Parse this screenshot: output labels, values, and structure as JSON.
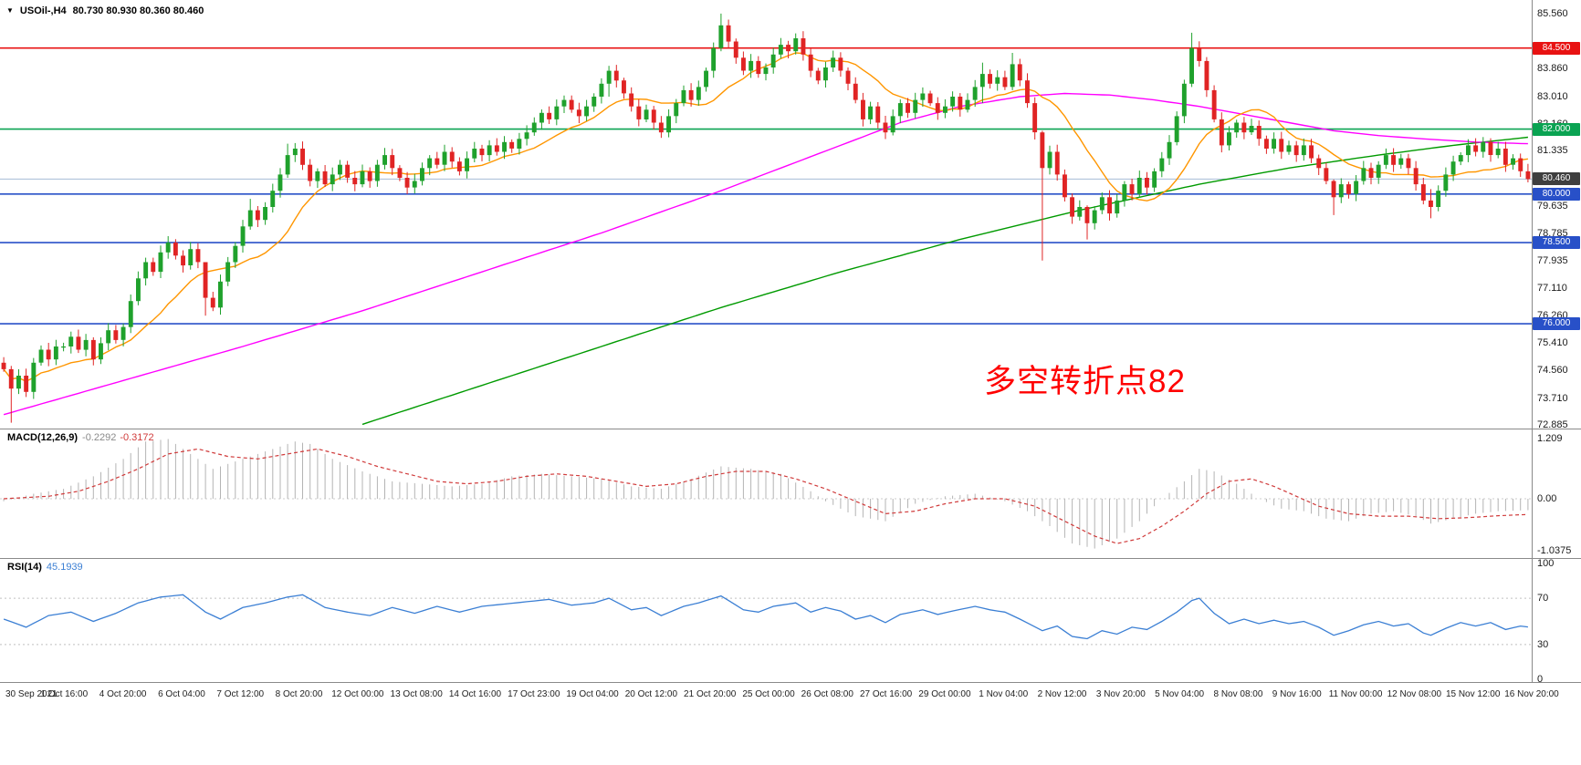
{
  "header": {
    "symbol": "USOil-,H4",
    "ohlc": "80.730 80.930 80.360 80.460"
  },
  "annotation": {
    "text": "多空转折点82",
    "color": "#ff0000"
  },
  "panels": {
    "macd": {
      "label": "MACD(12,26,9)",
      "value_main": "-0.2292",
      "value_signal": "-0.3172"
    },
    "rsi": {
      "label": "RSI(14)",
      "value": "45.1939"
    }
  },
  "chart_data": {
    "type": "candlestick",
    "symbol": "USOil",
    "timeframe": "H4",
    "ohlc_current": {
      "open": 80.73,
      "high": 80.93,
      "low": 80.36,
      "close": 80.46
    },
    "y_axis": {
      "range": [
        72.77,
        85.98
      ],
      "ticks": [
        "85.560",
        "83.860",
        "83.010",
        "82.160",
        "81.335",
        "79.635",
        "78.785",
        "77.935",
        "77.110",
        "76.260",
        "75.410",
        "74.560",
        "73.710",
        "72.885"
      ]
    },
    "up_color": "#1fa12c",
    "down_color": "#e02424",
    "closes": [
      74.6,
      74.0,
      74.4,
      73.9,
      74.8,
      75.2,
      74.9,
      75.3,
      75.3,
      75.6,
      75.2,
      75.5,
      74.9,
      75.4,
      75.8,
      75.5,
      75.9,
      76.7,
      77.4,
      77.9,
      77.6,
      78.2,
      78.5,
      78.1,
      77.8,
      78.3,
      77.9,
      76.8,
      76.5,
      77.3,
      77.9,
      78.4,
      79.0,
      79.5,
      79.2,
      79.6,
      80.1,
      80.6,
      81.2,
      81.4,
      80.9,
      80.4,
      80.7,
      80.3,
      80.6,
      80.9,
      80.5,
      80.3,
      80.7,
      80.4,
      80.9,
      81.2,
      80.8,
      80.5,
      80.2,
      80.4,
      80.8,
      81.1,
      80.9,
      81.3,
      81.0,
      80.7,
      81.1,
      81.4,
      81.2,
      81.5,
      81.3,
      81.6,
      81.4,
      81.7,
      81.9,
      82.2,
      82.5,
      82.3,
      82.7,
      82.9,
      82.6,
      82.4,
      82.7,
      83.0,
      83.4,
      83.8,
      83.5,
      83.1,
      82.7,
      82.3,
      82.6,
      82.2,
      81.9,
      82.4,
      82.8,
      83.2,
      82.9,
      83.3,
      83.8,
      84.5,
      85.2,
      84.7,
      84.2,
      83.8,
      84.1,
      83.7,
      83.9,
      84.3,
      84.6,
      84.4,
      84.8,
      84.3,
      83.8,
      83.5,
      83.9,
      84.2,
      83.8,
      83.4,
      82.9,
      82.3,
      82.7,
      82.2,
      81.9,
      82.4,
      82.8,
      82.5,
      82.9,
      83.1,
      82.8,
      82.5,
      82.7,
      83.0,
      82.6,
      82.9,
      83.3,
      83.7,
      83.4,
      83.6,
      83.3,
      84.0,
      83.5,
      82.8,
      81.9,
      80.8,
      81.3,
      80.6,
      79.9,
      79.3,
      79.6,
      79.1,
      79.5,
      79.9,
      79.4,
      79.8,
      80.3,
      80.0,
      80.5,
      80.2,
      80.7,
      81.1,
      81.6,
      82.4,
      83.4,
      84.5,
      84.1,
      83.2,
      82.3,
      81.5,
      81.9,
      82.2,
      81.9,
      82.1,
      81.7,
      81.4,
      81.7,
      81.3,
      81.5,
      81.2,
      81.5,
      81.1,
      80.8,
      80.4,
      79.9,
      80.3,
      80.0,
      80.4,
      80.8,
      80.5,
      80.9,
      81.2,
      80.9,
      81.1,
      80.8,
      80.3,
      79.8,
      79.6,
      80.1,
      80.6,
      81.0,
      81.2,
      81.5,
      81.3,
      81.6,
      81.2,
      81.4,
      80.9,
      81.1,
      80.7,
      80.46
    ],
    "wick_overrides": {
      "1": [
        74.7,
        72.95
      ],
      "27": [
        77.9,
        76.25
      ],
      "33": [
        79.85,
        78.9
      ],
      "38": [
        81.55,
        80.5
      ],
      "81": [
        83.95,
        83.0
      ],
      "96": [
        85.56,
        84.4
      ],
      "106": [
        84.95,
        84.3
      ],
      "131": [
        84.05,
        82.8
      ],
      "135": [
        84.35,
        83.2
      ],
      "139": [
        81.95,
        77.95
      ],
      "145": [
        79.65,
        78.6
      ],
      "159": [
        84.97,
        83.3
      ],
      "178": [
        80.45,
        79.35
      ],
      "191": [
        80.15,
        79.25
      ],
      "204": [
        80.93,
        80.36
      ]
    },
    "ma_fast": {
      "period": 12,
      "color": "#ff9600"
    },
    "ma_mid": {
      "color": "#ff00ff",
      "points": [
        [
          0,
          73.2
        ],
        [
          16,
          74.25
        ],
        [
          32,
          75.3
        ],
        [
          48,
          76.4
        ],
        [
          64,
          77.6
        ],
        [
          80,
          78.8
        ],
        [
          96,
          80.1
        ],
        [
          104,
          80.8
        ],
        [
          112,
          81.5
        ],
        [
          120,
          82.2
        ],
        [
          128,
          82.7
        ],
        [
          136,
          83.0
        ],
        [
          142,
          83.1
        ],
        [
          148,
          83.05
        ],
        [
          154,
          82.9
        ],
        [
          160,
          82.7
        ],
        [
          166,
          82.45
        ],
        [
          172,
          82.2
        ],
        [
          178,
          81.95
        ],
        [
          184,
          81.8
        ],
        [
          190,
          81.7
        ],
        [
          197,
          81.6
        ],
        [
          204,
          81.55
        ]
      ]
    },
    "ma_slow": {
      "color": "#009a00",
      "points": [
        [
          48,
          72.9
        ],
        [
          64,
          74.1
        ],
        [
          80,
          75.3
        ],
        [
          96,
          76.5
        ],
        [
          112,
          77.6
        ],
        [
          128,
          78.6
        ],
        [
          144,
          79.5
        ],
        [
          160,
          80.3
        ],
        [
          172,
          80.8
        ],
        [
          184,
          81.2
        ],
        [
          194,
          81.5
        ],
        [
          204,
          81.75
        ]
      ]
    },
    "hlines": [
      {
        "price": 84.5,
        "color": "#e81212",
        "label": "84.500",
        "label_bg": "#e81212"
      },
      {
        "price": 82.0,
        "color": "#0aa352",
        "label": "82.000",
        "label_bg": "#0aa352"
      },
      {
        "price": 80.0,
        "color": "#2850c8",
        "label": "80.000",
        "label_bg": "#2850c8"
      },
      {
        "price": 78.5,
        "color": "#2850c8",
        "label": "78.500",
        "label_bg": "#2850c8"
      },
      {
        "price": 76.0,
        "color": "#2850c8",
        "label": "76.000",
        "label_bg": "#2850c8"
      }
    ],
    "current_price": {
      "value": 80.46,
      "label": "80.460",
      "line_color": "#a6bdd6",
      "label_bg": "#3f3f3f"
    },
    "macd": {
      "hist_color": "#b4b4b4",
      "signal_color": "#d03a3a",
      "scale_labels": [
        "1.209",
        "0.00",
        "-1.0375"
      ],
      "hist": [
        [
          0,
          -0.05
        ],
        [
          4,
          0.1
        ],
        [
          8,
          0.2
        ],
        [
          12,
          0.45
        ],
        [
          16,
          0.8
        ],
        [
          19,
          1.15
        ],
        [
          22,
          1.2
        ],
        [
          25,
          0.9
        ],
        [
          28,
          0.6
        ],
        [
          31,
          0.75
        ],
        [
          35,
          0.95
        ],
        [
          39,
          1.15
        ],
        [
          41,
          1.1
        ],
        [
          44,
          0.8
        ],
        [
          48,
          0.55
        ],
        [
          52,
          0.35
        ],
        [
          56,
          0.3
        ],
        [
          60,
          0.25
        ],
        [
          64,
          0.3
        ],
        [
          68,
          0.45
        ],
        [
          72,
          0.5
        ],
        [
          76,
          0.45
        ],
        [
          80,
          0.4
        ],
        [
          84,
          0.25
        ],
        [
          88,
          0.2
        ],
        [
          92,
          0.4
        ],
        [
          96,
          0.65
        ],
        [
          100,
          0.6
        ],
        [
          104,
          0.5
        ],
        [
          108,
          0.15
        ],
        [
          110,
          -0.05
        ],
        [
          114,
          -0.35
        ],
        [
          118,
          -0.45
        ],
        [
          122,
          -0.1
        ],
        [
          126,
          0.05
        ],
        [
          130,
          0.1
        ],
        [
          134,
          -0.05
        ],
        [
          137,
          -0.25
        ],
        [
          140,
          -0.55
        ],
        [
          143,
          -0.9
        ],
        [
          146,
          -1.0
        ],
        [
          149,
          -0.8
        ],
        [
          152,
          -0.45
        ],
        [
          155,
          0.0
        ],
        [
          158,
          0.35
        ],
        [
          160,
          0.6
        ],
        [
          162,
          0.55
        ],
        [
          165,
          0.3
        ],
        [
          168,
          0.0
        ],
        [
          171,
          -0.2
        ],
        [
          174,
          -0.25
        ],
        [
          177,
          -0.4
        ],
        [
          180,
          -0.45
        ],
        [
          183,
          -0.3
        ],
        [
          186,
          -0.25
        ],
        [
          189,
          -0.35
        ],
        [
          191,
          -0.5
        ],
        [
          194,
          -0.4
        ],
        [
          197,
          -0.3
        ],
        [
          200,
          -0.25
        ],
        [
          204,
          -0.2292
        ]
      ],
      "signal": [
        [
          0,
          0.0
        ],
        [
          6,
          0.05
        ],
        [
          10,
          0.15
        ],
        [
          14,
          0.35
        ],
        [
          18,
          0.6
        ],
        [
          22,
          0.9
        ],
        [
          26,
          1.0
        ],
        [
          30,
          0.85
        ],
        [
          34,
          0.8
        ],
        [
          38,
          0.9
        ],
        [
          42,
          1.0
        ],
        [
          46,
          0.85
        ],
        [
          50,
          0.65
        ],
        [
          54,
          0.5
        ],
        [
          58,
          0.35
        ],
        [
          62,
          0.3
        ],
        [
          66,
          0.35
        ],
        [
          70,
          0.45
        ],
        [
          74,
          0.5
        ],
        [
          78,
          0.45
        ],
        [
          82,
          0.35
        ],
        [
          86,
          0.25
        ],
        [
          90,
          0.3
        ],
        [
          94,
          0.45
        ],
        [
          98,
          0.55
        ],
        [
          102,
          0.55
        ],
        [
          106,
          0.4
        ],
        [
          110,
          0.2
        ],
        [
          114,
          -0.05
        ],
        [
          118,
          -0.3
        ],
        [
          122,
          -0.25
        ],
        [
          126,
          -0.1
        ],
        [
          130,
          0.0
        ],
        [
          134,
          0.0
        ],
        [
          138,
          -0.15
        ],
        [
          142,
          -0.45
        ],
        [
          146,
          -0.75
        ],
        [
          149,
          -0.9
        ],
        [
          152,
          -0.8
        ],
        [
          155,
          -0.55
        ],
        [
          158,
          -0.25
        ],
        [
          161,
          0.1
        ],
        [
          164,
          0.35
        ],
        [
          167,
          0.4
        ],
        [
          170,
          0.25
        ],
        [
          173,
          0.05
        ],
        [
          176,
          -0.15
        ],
        [
          180,
          -0.3
        ],
        [
          184,
          -0.35
        ],
        [
          188,
          -0.35
        ],
        [
          192,
          -0.4
        ],
        [
          196,
          -0.38
        ],
        [
          200,
          -0.34
        ],
        [
          204,
          -0.3172
        ]
      ]
    },
    "rsi": {
      "line_color": "#3b7fd4",
      "levels": [
        70,
        30
      ],
      "scale_labels": [
        "100",
        "70",
        "30",
        "0"
      ],
      "points": [
        [
          0,
          52
        ],
        [
          3,
          45
        ],
        [
          6,
          55
        ],
        [
          9,
          58
        ],
        [
          12,
          50
        ],
        [
          15,
          57
        ],
        [
          18,
          66
        ],
        [
          21,
          71
        ],
        [
          24,
          73
        ],
        [
          27,
          58
        ],
        [
          29,
          52
        ],
        [
          32,
          62
        ],
        [
          35,
          66
        ],
        [
          38,
          71
        ],
        [
          40,
          73
        ],
        [
          43,
          62
        ],
        [
          46,
          58
        ],
        [
          49,
          55
        ],
        [
          52,
          62
        ],
        [
          55,
          57
        ],
        [
          58,
          63
        ],
        [
          61,
          58
        ],
        [
          64,
          63
        ],
        [
          67,
          65
        ],
        [
          70,
          67
        ],
        [
          73,
          69
        ],
        [
          76,
          64
        ],
        [
          79,
          66
        ],
        [
          81,
          70
        ],
        [
          84,
          60
        ],
        [
          86,
          62
        ],
        [
          88,
          55
        ],
        [
          91,
          63
        ],
        [
          93,
          66
        ],
        [
          95,
          70
        ],
        [
          96,
          72
        ],
        [
          99,
          60
        ],
        [
          101,
          58
        ],
        [
          103,
          63
        ],
        [
          106,
          66
        ],
        [
          108,
          58
        ],
        [
          110,
          62
        ],
        [
          112,
          59
        ],
        [
          114,
          52
        ],
        [
          116,
          55
        ],
        [
          118,
          49
        ],
        [
          120,
          56
        ],
        [
          123,
          60
        ],
        [
          125,
          56
        ],
        [
          127,
          59
        ],
        [
          130,
          63
        ],
        [
          132,
          60
        ],
        [
          134,
          58
        ],
        [
          136,
          52
        ],
        [
          139,
          42
        ],
        [
          141,
          46
        ],
        [
          143,
          37
        ],
        [
          145,
          35
        ],
        [
          147,
          42
        ],
        [
          149,
          39
        ],
        [
          151,
          45
        ],
        [
          153,
          43
        ],
        [
          155,
          50
        ],
        [
          157,
          58
        ],
        [
          159,
          68
        ],
        [
          160,
          70
        ],
        [
          162,
          57
        ],
        [
          164,
          48
        ],
        [
          166,
          52
        ],
        [
          168,
          48
        ],
        [
          170,
          51
        ],
        [
          172,
          48
        ],
        [
          174,
          50
        ],
        [
          176,
          45
        ],
        [
          178,
          38
        ],
        [
          180,
          42
        ],
        [
          182,
          47
        ],
        [
          184,
          50
        ],
        [
          186,
          46
        ],
        [
          188,
          48
        ],
        [
          190,
          40
        ],
        [
          191,
          38
        ],
        [
          193,
          44
        ],
        [
          195,
          49
        ],
        [
          197,
          46
        ],
        [
          199,
          49
        ],
        [
          201,
          43
        ],
        [
          203,
          46
        ],
        [
          204,
          45.19
        ]
      ]
    },
    "x_labels": [
      "30 Sep 2021",
      "1 Oct 16:00",
      "4 Oct 20:00",
      "6 Oct 04:00",
      "7 Oct 12:00",
      "8 Oct 20:00",
      "12 Oct 00:00",
      "13 Oct 08:00",
      "14 Oct 16:00",
      "17 Oct 23:00",
      "19 Oct 04:00",
      "20 Oct 12:00",
      "21 Oct 20:00",
      "25 Oct 00:00",
      "26 Oct 08:00",
      "27 Oct 16:00",
      "29 Oct 00:00",
      "1 Nov 04:00",
      "2 Nov 12:00",
      "3 Nov 20:00",
      "5 Nov 04:00",
      "8 Nov 08:00",
      "9 Nov 16:00",
      "11 Nov 00:00",
      "12 Nov 08:00",
      "15 Nov 12:00",
      "16 Nov 20:00"
    ]
  }
}
